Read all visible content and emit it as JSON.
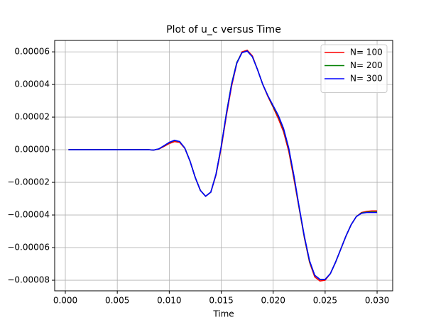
{
  "chart_data": {
    "type": "line",
    "title": "Plot of u_c versus Time",
    "xlabel": "Time",
    "x": [
      0.0003,
      0.001,
      0.002,
      0.003,
      0.004,
      0.005,
      0.006,
      0.007,
      0.0075,
      0.008,
      0.0085,
      0.009,
      0.0095,
      0.01,
      0.0105,
      0.011,
      0.0115,
      0.012,
      0.0125,
      0.013,
      0.0135,
      0.014,
      0.0145,
      0.015,
      0.0155,
      0.016,
      0.0165,
      0.017,
      0.0175,
      0.018,
      0.0185,
      0.019,
      0.0195,
      0.02,
      0.0205,
      0.021,
      0.0215,
      0.022,
      0.0225,
      0.023,
      0.0235,
      0.024,
      0.0245,
      0.025,
      0.0255,
      0.026,
      0.0265,
      0.027,
      0.0275,
      0.028,
      0.0285,
      0.029,
      0.0295,
      0.03
    ],
    "series": [
      {
        "name": "N= 100",
        "color": "#ff0000",
        "values": [
          0,
          0,
          0,
          0,
          0,
          0,
          0,
          0,
          0,
          0,
          -2e-07,
          4e-07,
          2e-06,
          3.8e-06,
          5e-06,
          4.5e-06,
          8e-07,
          -7e-06,
          -1.7e-05,
          -2.5e-05,
          -2.85e-05,
          -2.6e-05,
          -1.55e-05,
          1e-06,
          2.1e-05,
          3.9e-05,
          5.3e-05,
          6e-05,
          6.1e-05,
          5.75e-05,
          4.9e-05,
          4e-05,
          3.25e-05,
          2.6e-05,
          1.9e-05,
          1.1e-05,
          -1e-06,
          -1.8e-05,
          -3.6e-05,
          -5.4e-05,
          -6.9e-05,
          -7.8e-05,
          -8.05e-05,
          -8e-05,
          -7.6e-05,
          -6.9e-05,
          -6.1e-05,
          -5.3e-05,
          -4.6e-05,
          -4.1e-05,
          -3.85e-05,
          -3.78e-05,
          -3.75e-05,
          -3.75e-05
        ]
      },
      {
        "name": "N= 200",
        "color": "#008000",
        "values": [
          0,
          0,
          0,
          0,
          0,
          0,
          0,
          0,
          0,
          0,
          -2e-07,
          5e-07,
          2.4e-06,
          4.4e-06,
          5.7e-06,
          5e-06,
          1e-06,
          -7e-06,
          -1.7e-05,
          -2.5e-05,
          -2.85e-05,
          -2.6e-05,
          -1.5e-05,
          2e-06,
          2.25e-05,
          4.05e-05,
          5.35e-05,
          5.95e-05,
          6.05e-05,
          5.7e-05,
          4.9e-05,
          4e-05,
          3.3e-05,
          2.65e-05,
          2.05e-05,
          1.25e-05,
          5e-07,
          -1.65e-05,
          -3.55e-05,
          -5.35e-05,
          -6.85e-05,
          -7.7e-05,
          -7.95e-05,
          -7.95e-05,
          -7.6e-05,
          -6.9e-05,
          -6.1e-05,
          -5.3e-05,
          -4.6e-05,
          -4.1e-05,
          -3.88e-05,
          -3.83e-05,
          -3.82e-05,
          -3.82e-05
        ]
      },
      {
        "name": "N= 300",
        "color": "#0000ff",
        "values": [
          0,
          0,
          0,
          0,
          0,
          0,
          0,
          0,
          0,
          0,
          -2e-07,
          5e-07,
          2.5e-06,
          4.5e-06,
          5.8e-06,
          5e-06,
          1e-06,
          -7e-06,
          -1.7e-05,
          -2.5e-05,
          -2.85e-05,
          -2.6e-05,
          -1.5e-05,
          2e-06,
          2.2e-05,
          4e-05,
          5.3e-05,
          5.95e-05,
          6.05e-05,
          5.7e-05,
          4.9e-05,
          4e-05,
          3.3e-05,
          2.7e-05,
          2.1e-05,
          1.3e-05,
          1e-06,
          -1.6e-05,
          -3.5e-05,
          -5.3e-05,
          -6.8e-05,
          -7.7e-05,
          -7.95e-05,
          -7.95e-05,
          -7.6e-05,
          -6.9e-05,
          -6.1e-05,
          -5.3e-05,
          -4.6e-05,
          -4.1e-05,
          -3.9e-05,
          -3.85e-05,
          -3.85e-05,
          -3.85e-05
        ]
      }
    ],
    "xlim": [
      -0.001025,
      0.0315
    ],
    "ylim": [
      -8.65e-05,
      6.7e-05
    ],
    "xticks": [
      {
        "value": 0,
        "label": "0.000"
      },
      {
        "value": 0.005,
        "label": "0.005"
      },
      {
        "value": 0.01,
        "label": "0.010"
      },
      {
        "value": 0.015,
        "label": "0.015"
      },
      {
        "value": 0.02,
        "label": "0.020"
      },
      {
        "value": 0.025,
        "label": "0.025"
      },
      {
        "value": 0.03,
        "label": "0.030"
      }
    ],
    "yticks": [
      {
        "value": -8e-05,
        "label": "−0.00008"
      },
      {
        "value": -6e-05,
        "label": "−0.00006"
      },
      {
        "value": -4e-05,
        "label": "−0.00004"
      },
      {
        "value": -2e-05,
        "label": "−0.00002"
      },
      {
        "value": 0,
        "label": "0.00000"
      },
      {
        "value": 2e-05,
        "label": "0.00002"
      },
      {
        "value": 4e-05,
        "label": "0.00004"
      },
      {
        "value": 6e-05,
        "label": "0.00006"
      }
    ],
    "grid": true,
    "legend": "upper right"
  }
}
